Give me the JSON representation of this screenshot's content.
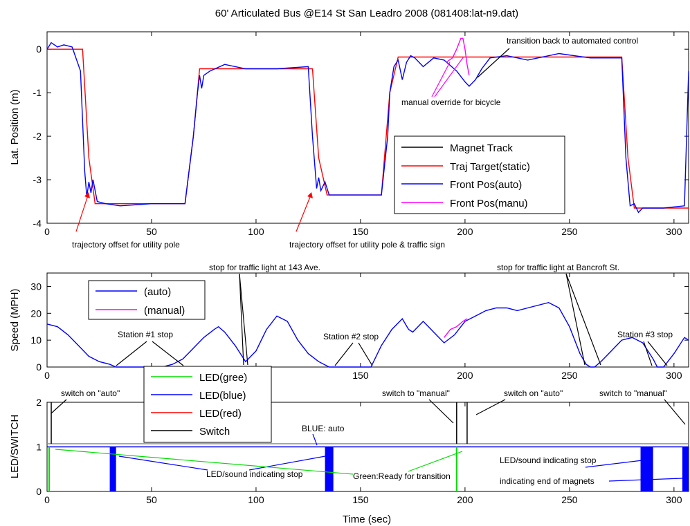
{
  "title": "60' Articulated Bus @E14 St San Leadro 2008 (081408:lat-n9.dat)",
  "xlabel": "Time (sec)",
  "colors": {
    "magnet": "#000000",
    "target": "#ff0000",
    "auto": "#0000ff",
    "manual": "#ff00ff",
    "led_green": "#00dd00",
    "led_blue": "#0000ff",
    "led_red": "#ff0000",
    "switch": "#000000"
  },
  "chart_data": [
    {
      "type": "line",
      "ylabel": "Lat. Position (m)",
      "xlim": [
        0,
        307
      ],
      "ylim": [
        -4,
        0.4
      ],
      "xticks": [
        "0",
        "50",
        "100",
        "150",
        "200",
        "250",
        "300"
      ],
      "yticks": [
        "0",
        "-1",
        "-2",
        "-3",
        "-4"
      ],
      "legend": [
        "Magnet Track",
        "Traj Target(static)",
        "Front Pos(auto)",
        "Front Pos(manu)"
      ],
      "legend_position": "lower-right",
      "series": [
        {
          "name": "Traj Target(static)",
          "x": [
            0,
            17,
            20,
            23,
            66,
            70,
            73,
            127,
            130,
            134,
            160,
            164,
            168,
            275,
            278,
            281,
            307
          ],
          "y": [
            0,
            0,
            -2.5,
            -3.55,
            -3.55,
            -2,
            -0.45,
            -0.45,
            -2.5,
            -3.35,
            -3.35,
            -1,
            -0.18,
            -0.18,
            -2.5,
            -3.65,
            -3.65
          ]
        },
        {
          "name": "Front Pos(auto)",
          "x": [
            0,
            2,
            5,
            8,
            12,
            16,
            18,
            19,
            20,
            21,
            22,
            24,
            28,
            35,
            50,
            66,
            70,
            72,
            73,
            74,
            75,
            78,
            85,
            95,
            110,
            125,
            127,
            129,
            130,
            131,
            133,
            135,
            140,
            160,
            163,
            164,
            166,
            168,
            170,
            172,
            174,
            176,
            180,
            185,
            190,
            196,
            200,
            202,
            205,
            208,
            212,
            220,
            230,
            245,
            260,
            275,
            277,
            279,
            281,
            283,
            285,
            295,
            305,
            307
          ],
          "y": [
            0,
            0.15,
            0.05,
            0.1,
            0.05,
            -0.5,
            -2.8,
            -3.4,
            -3.05,
            -3.3,
            -3.0,
            -3.5,
            -3.55,
            -3.6,
            -3.55,
            -3.55,
            -2,
            -1.0,
            -0.6,
            -0.9,
            -0.6,
            -0.5,
            -0.35,
            -0.45,
            -0.45,
            -0.4,
            -2,
            -3.2,
            -2.95,
            -3.25,
            -3.05,
            -3.35,
            -3.35,
            -3.35,
            -2.0,
            -1.0,
            -0.4,
            -0.25,
            -0.7,
            -0.3,
            -0.15,
            -0.2,
            -0.4,
            -0.2,
            -0.25,
            -0.5,
            -0.75,
            -0.85,
            -0.7,
            -0.45,
            -0.2,
            -0.15,
            -0.25,
            -0.1,
            -0.2,
            -0.2,
            -2.5,
            -3.6,
            -3.55,
            -3.75,
            -3.65,
            -3.65,
            -3.6,
            -0.5
          ]
        },
        {
          "name": "Front Pos(manu)",
          "x": [
            191,
            194,
            196,
            198,
            199,
            200,
            201,
            202
          ],
          "y": [
            -0.3,
            -0.2,
            0.0,
            0.25,
            0.25,
            0.0,
            -0.35,
            -0.6
          ]
        }
      ],
      "annotations": [
        "trajectory offset for utility pole",
        "trajectory offset for utility pole & traffic sign",
        "transition back to automated control",
        "manual override for bicycle"
      ]
    },
    {
      "type": "line",
      "ylabel": "Speed (MPH)",
      "xlim": [
        0,
        307
      ],
      "ylim": [
        0,
        35
      ],
      "xticks": [
        "0",
        "50",
        "100",
        "150",
        "200",
        "250",
        "300"
      ],
      "yticks": [
        "30",
        "20",
        "10",
        "0"
      ],
      "legend": [
        "(auto)",
        "(manual)"
      ],
      "legend_position": "upper-left",
      "series": [
        {
          "name": "(auto)",
          "x": [
            0,
            5,
            10,
            15,
            20,
            25,
            30,
            33,
            35,
            40,
            45,
            50,
            55,
            60,
            65,
            70,
            75,
            80,
            82,
            85,
            90,
            95,
            100,
            105,
            110,
            115,
            120,
            125,
            130,
            135,
            138,
            140,
            145,
            150,
            155,
            160,
            165,
            170,
            173,
            175,
            180,
            185,
            190,
            195,
            200,
            205,
            210,
            215,
            220,
            225,
            230,
            240,
            245,
            250,
            255,
            258,
            260,
            262,
            265,
            270,
            275,
            280,
            285,
            290,
            292,
            295,
            300,
            305,
            307
          ],
          "y": [
            16,
            15,
            12,
            8,
            4,
            2,
            1,
            0,
            0,
            0,
            0,
            0,
            0,
            1,
            3,
            7,
            11,
            14,
            15,
            13,
            8,
            2,
            6,
            14,
            19,
            17,
            10,
            5,
            2,
            0,
            0,
            0,
            0,
            0,
            0,
            8,
            14,
            18,
            14,
            13,
            17,
            13,
            9,
            12,
            17,
            19,
            21,
            22,
            22,
            21,
            22,
            24,
            22,
            15,
            5,
            1,
            0,
            0,
            2,
            6,
            10,
            11,
            9,
            3,
            0,
            0,
            5,
            11,
            10
          ]
        },
        {
          "name": "(manual)",
          "x": [
            190,
            193,
            196,
            199,
            201
          ],
          "y": [
            11,
            14,
            15,
            17,
            18
          ]
        }
      ],
      "annotations": [
        "stop for traffic light at 143 Ave.",
        "stop for traffic light at Bancroft St.",
        "Station #1 stop",
        "Station #2 stop",
        "Station #3 stop"
      ]
    },
    {
      "type": "line",
      "ylabel": "LED/SWITCH",
      "xlim": [
        0,
        307
      ],
      "ylim": [
        0,
        2
      ],
      "xticks": [
        "0",
        "50",
        "100",
        "150",
        "200",
        "250",
        "300"
      ],
      "yticks": [
        "2",
        "1",
        "0"
      ],
      "legend": [
        "LED(gree)",
        "LED(blue)",
        "LED(red)",
        "Switch"
      ],
      "legend_position": "upper-left",
      "blue_bands": [
        [
          30,
          33
        ],
        [
          133,
          137
        ],
        [
          284,
          290
        ],
        [
          304,
          307
        ]
      ],
      "green_spikes": [
        1,
        196
      ],
      "switch_spikes": [
        2,
        196,
        201
      ],
      "annotations": [
        "switch on \"auto\"",
        "BLUE: auto",
        "switch to \"manual\"",
        "switch on \"auto\"",
        "switch to \"manual\"",
        "LED/sound indicating stop",
        "Green:Ready for transition",
        "LED/sound indicating stop",
        "indicating end of magnets"
      ]
    }
  ]
}
